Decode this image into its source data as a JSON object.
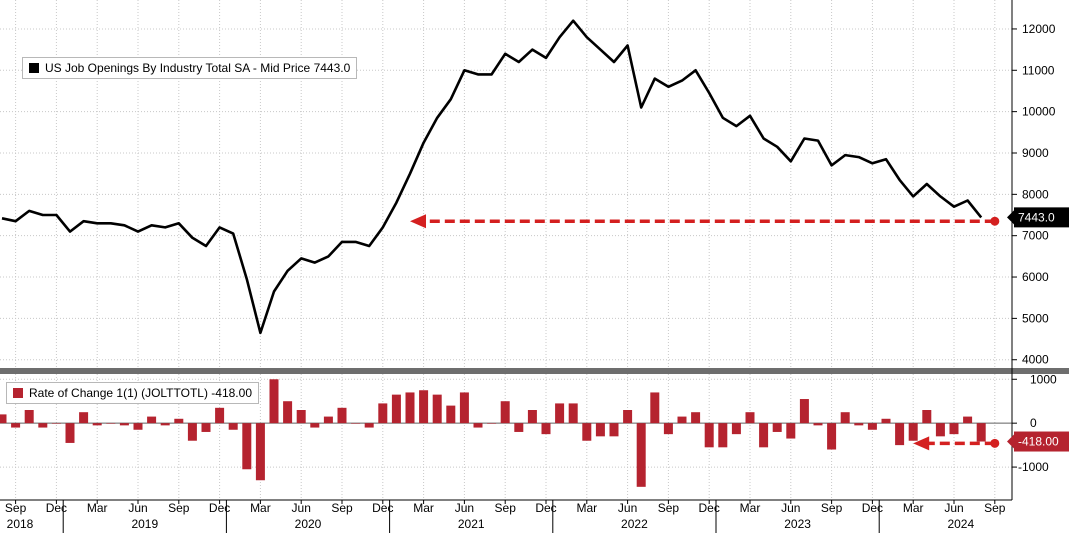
{
  "chart_data": [
    {
      "type": "line",
      "legend": "US Job Openings By Industry Total SA - Mid Price 7443.0",
      "last_value_label": "7443.0",
      "line_color": "#000000",
      "annotation_color": "#d42020",
      "ylim": [
        3800,
        12700
      ],
      "yticks": [
        4000,
        5000,
        6000,
        7000,
        8000,
        9000,
        10000,
        11000,
        12000
      ],
      "grid": true,
      "legend_position": "top-left",
      "x_start": "2018-08",
      "values": [
        7420,
        7350,
        7600,
        7500,
        7500,
        7100,
        7350,
        7300,
        7300,
        7250,
        7100,
        7250,
        7200,
        7300,
        6950,
        6750,
        7200,
        7050,
        5950,
        4650,
        5650,
        6150,
        6450,
        6350,
        6500,
        6850,
        6850,
        6750,
        7200,
        7800,
        8500,
        9250,
        9850,
        10300,
        11000,
        10900,
        10900,
        11400,
        11200,
        11500,
        11300,
        11800,
        12200,
        11800,
        11500,
        11200,
        11600,
        10100,
        10800,
        10600,
        10750,
        11000,
        10450,
        9850,
        9650,
        9900,
        9350,
        9150,
        8800,
        9350,
        9300,
        8700,
        8950,
        8900,
        8750,
        8850,
        8350,
        7950,
        8250,
        7950,
        7700,
        7850,
        7443
      ],
      "arrow": {
        "from": "2024-09",
        "to": "2021-02",
        "value": 7350
      }
    },
    {
      "type": "bar",
      "legend": "Rate of Change 1(1) (JOLTTOTL) -418.00",
      "last_value_label": "-418.00",
      "bar_color": "#b5232f",
      "ylim": [
        -1750,
        1120
      ],
      "yticks": [
        -1000,
        0,
        1000
      ],
      "grid": true,
      "legend_position": "top-left",
      "x_start": "2018-08",
      "values": [
        200,
        -100,
        300,
        -100,
        0,
        -450,
        250,
        -50,
        0,
        -50,
        -150,
        150,
        -50,
        100,
        -400,
        -200,
        350,
        -150,
        -1050,
        -1300,
        1000,
        500,
        300,
        -100,
        150,
        350,
        0,
        -100,
        450,
        650,
        700,
        750,
        650,
        400,
        700,
        -100,
        0,
        500,
        -200,
        300,
        -250,
        450,
        450,
        -400,
        -300,
        -300,
        300,
        -1450,
        700,
        -250,
        150,
        250,
        -550,
        -550,
        -250,
        250,
        -550,
        -200,
        -350,
        550,
        -50,
        -600,
        250,
        -50,
        -150,
        100,
        -500,
        -400,
        300,
        -300,
        -250,
        150,
        -418
      ],
      "arrow": {
        "from": "2024-09",
        "to": "2024-03",
        "value": -460
      }
    }
  ],
  "x_axis": {
    "month_labels": [
      {
        "label": "Sep",
        "date": "2018-09"
      },
      {
        "label": "Dec",
        "date": "2018-12"
      },
      {
        "label": "Mar",
        "date": "2019-03"
      },
      {
        "label": "Jun",
        "date": "2019-06"
      },
      {
        "label": "Sep",
        "date": "2019-09"
      },
      {
        "label": "Dec",
        "date": "2019-12"
      },
      {
        "label": "Mar",
        "date": "2020-03"
      },
      {
        "label": "Jun",
        "date": "2020-06"
      },
      {
        "label": "Sep",
        "date": "2020-09"
      },
      {
        "label": "Dec",
        "date": "2020-12"
      },
      {
        "label": "Mar",
        "date": "2021-03"
      },
      {
        "label": "Jun",
        "date": "2021-06"
      },
      {
        "label": "Sep",
        "date": "2021-09"
      },
      {
        "label": "Dec",
        "date": "2021-12"
      },
      {
        "label": "Mar",
        "date": "2022-03"
      },
      {
        "label": "Jun",
        "date": "2022-06"
      },
      {
        "label": "Sep",
        "date": "2022-09"
      },
      {
        "label": "Dec",
        "date": "2022-12"
      },
      {
        "label": "Mar",
        "date": "2023-03"
      },
      {
        "label": "Jun",
        "date": "2023-06"
      },
      {
        "label": "Sep",
        "date": "2023-09"
      },
      {
        "label": "Dec",
        "date": "2023-12"
      },
      {
        "label": "Mar",
        "date": "2024-03"
      },
      {
        "label": "Jun",
        "date": "2024-06"
      },
      {
        "label": "Sep",
        "date": "2024-09"
      }
    ],
    "year_labels": [
      "2018",
      "2019",
      "2020",
      "2021",
      "2022",
      "2023",
      "2024"
    ]
  }
}
